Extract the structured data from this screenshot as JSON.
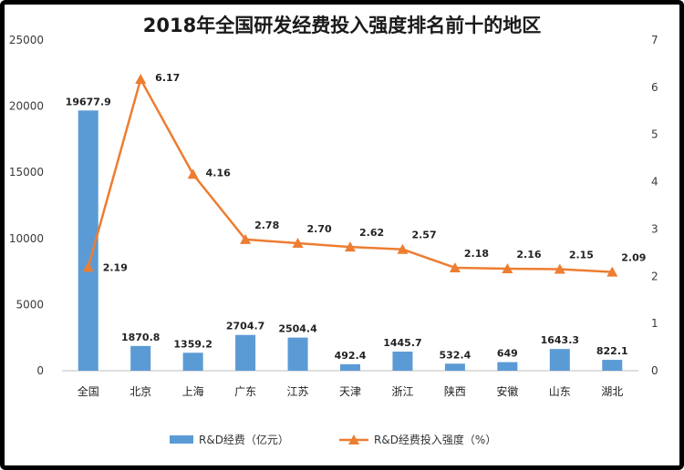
{
  "chart_data": {
    "type": "bar",
    "title": "2018年全国研发经费投入强度排名前十的地区",
    "categories": [
      "全国",
      "北京",
      "上海",
      "广东",
      "江苏",
      "天津",
      "浙江",
      "陕西",
      "安徽",
      "山东",
      "湖北"
    ],
    "series": [
      {
        "name": "R&D经费（亿元）",
        "type": "bar",
        "axis": "left",
        "color": "#5b9bd5",
        "values": [
          19677.9,
          1870.8,
          1359.2,
          2704.7,
          2504.4,
          492.4,
          1445.7,
          532.4,
          649,
          1643.3,
          822.1
        ],
        "labels": [
          "19677.9",
          "1870.8",
          "1359.2",
          "2704.7",
          "2504.4",
          "492.4",
          "1445.7",
          "532.4",
          "649",
          "1643.3",
          "822.1"
        ]
      },
      {
        "name": "R&D经费投入强度（%）",
        "type": "line",
        "axis": "right",
        "color": "#ed7d31",
        "marker": "triangle",
        "values": [
          2.19,
          6.17,
          4.16,
          2.78,
          2.7,
          2.62,
          2.57,
          2.18,
          2.16,
          2.15,
          2.09
        ],
        "labels": [
          "2.19",
          "6.17",
          "4.16",
          "2.78",
          "2.70",
          "2.62",
          "2.57",
          "2.18",
          "2.16",
          "2.15",
          "2.09"
        ]
      }
    ],
    "left_axis": {
      "ylim": [
        0,
        25000
      ],
      "ticks": [
        "0",
        "5000",
        "10000",
        "15000",
        "20000",
        "25000"
      ]
    },
    "right_axis": {
      "ylim": [
        0,
        7
      ],
      "ticks": [
        "0",
        "1",
        "2",
        "3",
        "4",
        "5",
        "6",
        "7"
      ]
    },
    "grid": false,
    "legend": "bottom"
  }
}
